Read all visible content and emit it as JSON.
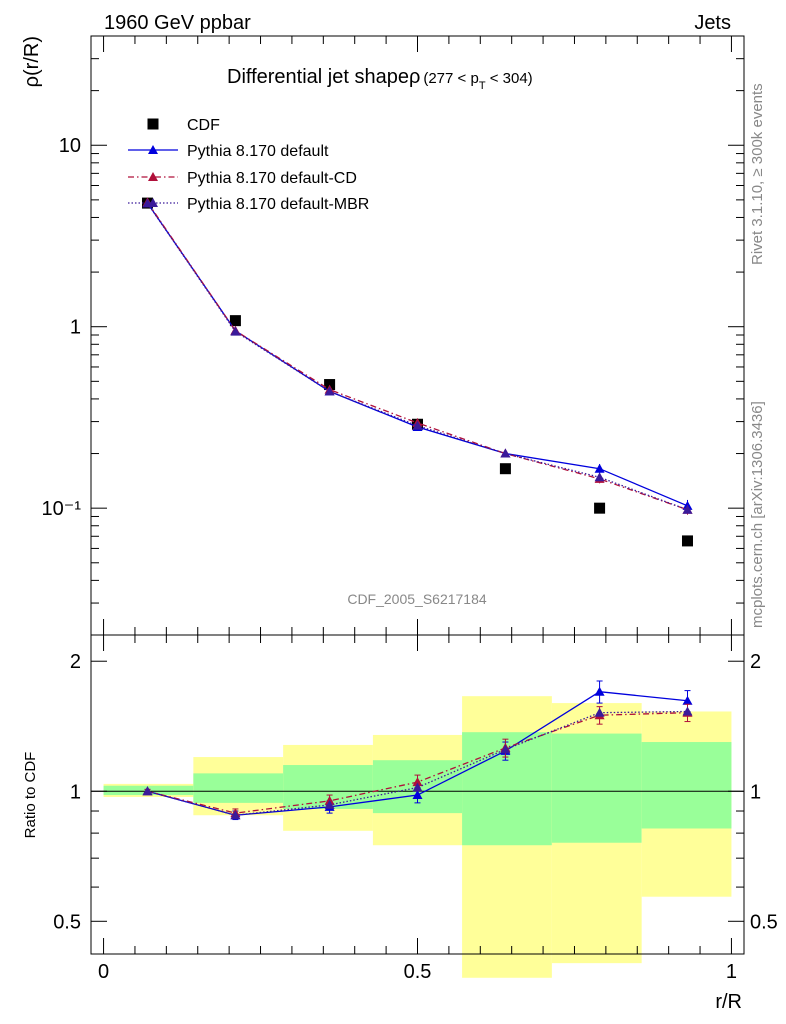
{
  "header": {
    "left": "1960 GeV ppbar",
    "right": "Jets"
  },
  "side_labels": {
    "rivet": "Rivet 3.1.10, ≥ 300k events",
    "mcplots": "mcplots.cern.ch [arXiv:1306.3436]"
  },
  "watermark": "CDF_2005_S6217184",
  "chart_data": [
    {
      "type": "line",
      "title_main": "Differential jet shapeρ",
      "title_cut": "(277 < p",
      "title_cut_sub": "T",
      "title_cut_end": " < 304)",
      "ylabel": "ρ(r/R)",
      "yscale": "log",
      "ylim": [
        0.02,
        40
      ],
      "xlim": [
        -0.02,
        1.02
      ],
      "y_ticks": [
        {
          "value": 10,
          "label": "10"
        },
        {
          "value": 1,
          "label": "1"
        },
        {
          "value": 0.1,
          "label": "10⁻¹"
        }
      ],
      "legend": [
        "CDF",
        "Pythia 8.170 default",
        "Pythia 8.170 default-CD",
        "Pythia 8.170 default-MBR"
      ],
      "legend_position": "top-left",
      "x": [
        0.07,
        0.21,
        0.36,
        0.5,
        0.64,
        0.79,
        0.93
      ],
      "series": [
        {
          "name": "CDF",
          "style": "markers",
          "color": "#000000",
          "values": [
            4.8,
            1.08,
            0.48,
            0.29,
            0.165,
            0.1,
            0.066
          ]
        },
        {
          "name": "Pythia 8.170 default",
          "style": "solid",
          "color": "#0000dd",
          "values": [
            4.8,
            0.95,
            0.44,
            0.28,
            0.2,
            0.165,
            0.103
          ],
          "errors": [
            0.1,
            0.02,
            0.01,
            0.008,
            0.006,
            0.01,
            0.008
          ]
        },
        {
          "name": "Pythia 8.170 default-CD",
          "style": "dashdot",
          "color": "#b0103a",
          "values": [
            4.85,
            0.95,
            0.45,
            0.295,
            0.2,
            0.145,
            0.098
          ],
          "errors": [
            0.1,
            0.02,
            0.01,
            0.008,
            0.006,
            0.008,
            0.006
          ]
        },
        {
          "name": "Pythia 8.170 default-MBR",
          "style": "dotted",
          "color": "#3a1a9a",
          "values": [
            4.78,
            0.94,
            0.44,
            0.285,
            0.2,
            0.148,
            0.098
          ]
        }
      ]
    },
    {
      "type": "line",
      "ylabel": "Ratio to CDF",
      "xlabel": "r/R",
      "yscale": "log",
      "ylim": [
        0.42,
        2.3
      ],
      "xlim": [
        -0.02,
        1.02
      ],
      "y_ticks": [
        {
          "value": 2,
          "label": "2"
        },
        {
          "value": 1,
          "label": "1"
        },
        {
          "value": 0.5,
          "label": "0.5"
        }
      ],
      "x_ticks": [
        {
          "value": 0,
          "label": "0"
        },
        {
          "value": 0.5,
          "label": "0.5"
        },
        {
          "value": 1,
          "label": "1"
        }
      ],
      "bins": [
        0,
        0.143,
        0.286,
        0.429,
        0.571,
        0.714,
        0.857,
        1.0
      ],
      "band_inner": [
        [
          0.98,
          1.03
        ],
        [
          0.94,
          1.1
        ],
        [
          0.91,
          1.15
        ],
        [
          0.89,
          1.18
        ],
        [
          0.75,
          1.37
        ],
        [
          0.76,
          1.36
        ],
        [
          0.82,
          1.3
        ]
      ],
      "band_outer": [
        [
          0.97,
          1.04
        ],
        [
          0.88,
          1.2
        ],
        [
          0.81,
          1.28
        ],
        [
          0.75,
          1.35
        ],
        [
          0.37,
          1.66
        ],
        [
          0.4,
          1.6
        ],
        [
          0.57,
          1.53
        ]
      ],
      "x": [
        0.07,
        0.21,
        0.36,
        0.5,
        0.64,
        0.79,
        0.93
      ],
      "series": [
        {
          "name": "Pythia 8.170 default",
          "style": "solid",
          "color": "#0000dd",
          "values": [
            1.0,
            0.88,
            0.92,
            0.98,
            1.24,
            1.7,
            1.62
          ],
          "errors": [
            0.01,
            0.02,
            0.03,
            0.04,
            0.06,
            0.1,
            0.09
          ]
        },
        {
          "name": "Pythia 8.170 default-CD",
          "style": "dashdot",
          "color": "#b0103a",
          "values": [
            1.0,
            0.89,
            0.95,
            1.05,
            1.26,
            1.5,
            1.52
          ],
          "errors": [
            0.01,
            0.02,
            0.03,
            0.04,
            0.06,
            0.07,
            0.07
          ]
        },
        {
          "name": "Pythia 8.170 default-MBR",
          "style": "dotted",
          "color": "#3a1a9a",
          "values": [
            1.0,
            0.88,
            0.93,
            1.02,
            1.25,
            1.52,
            1.53
          ]
        }
      ]
    }
  ]
}
